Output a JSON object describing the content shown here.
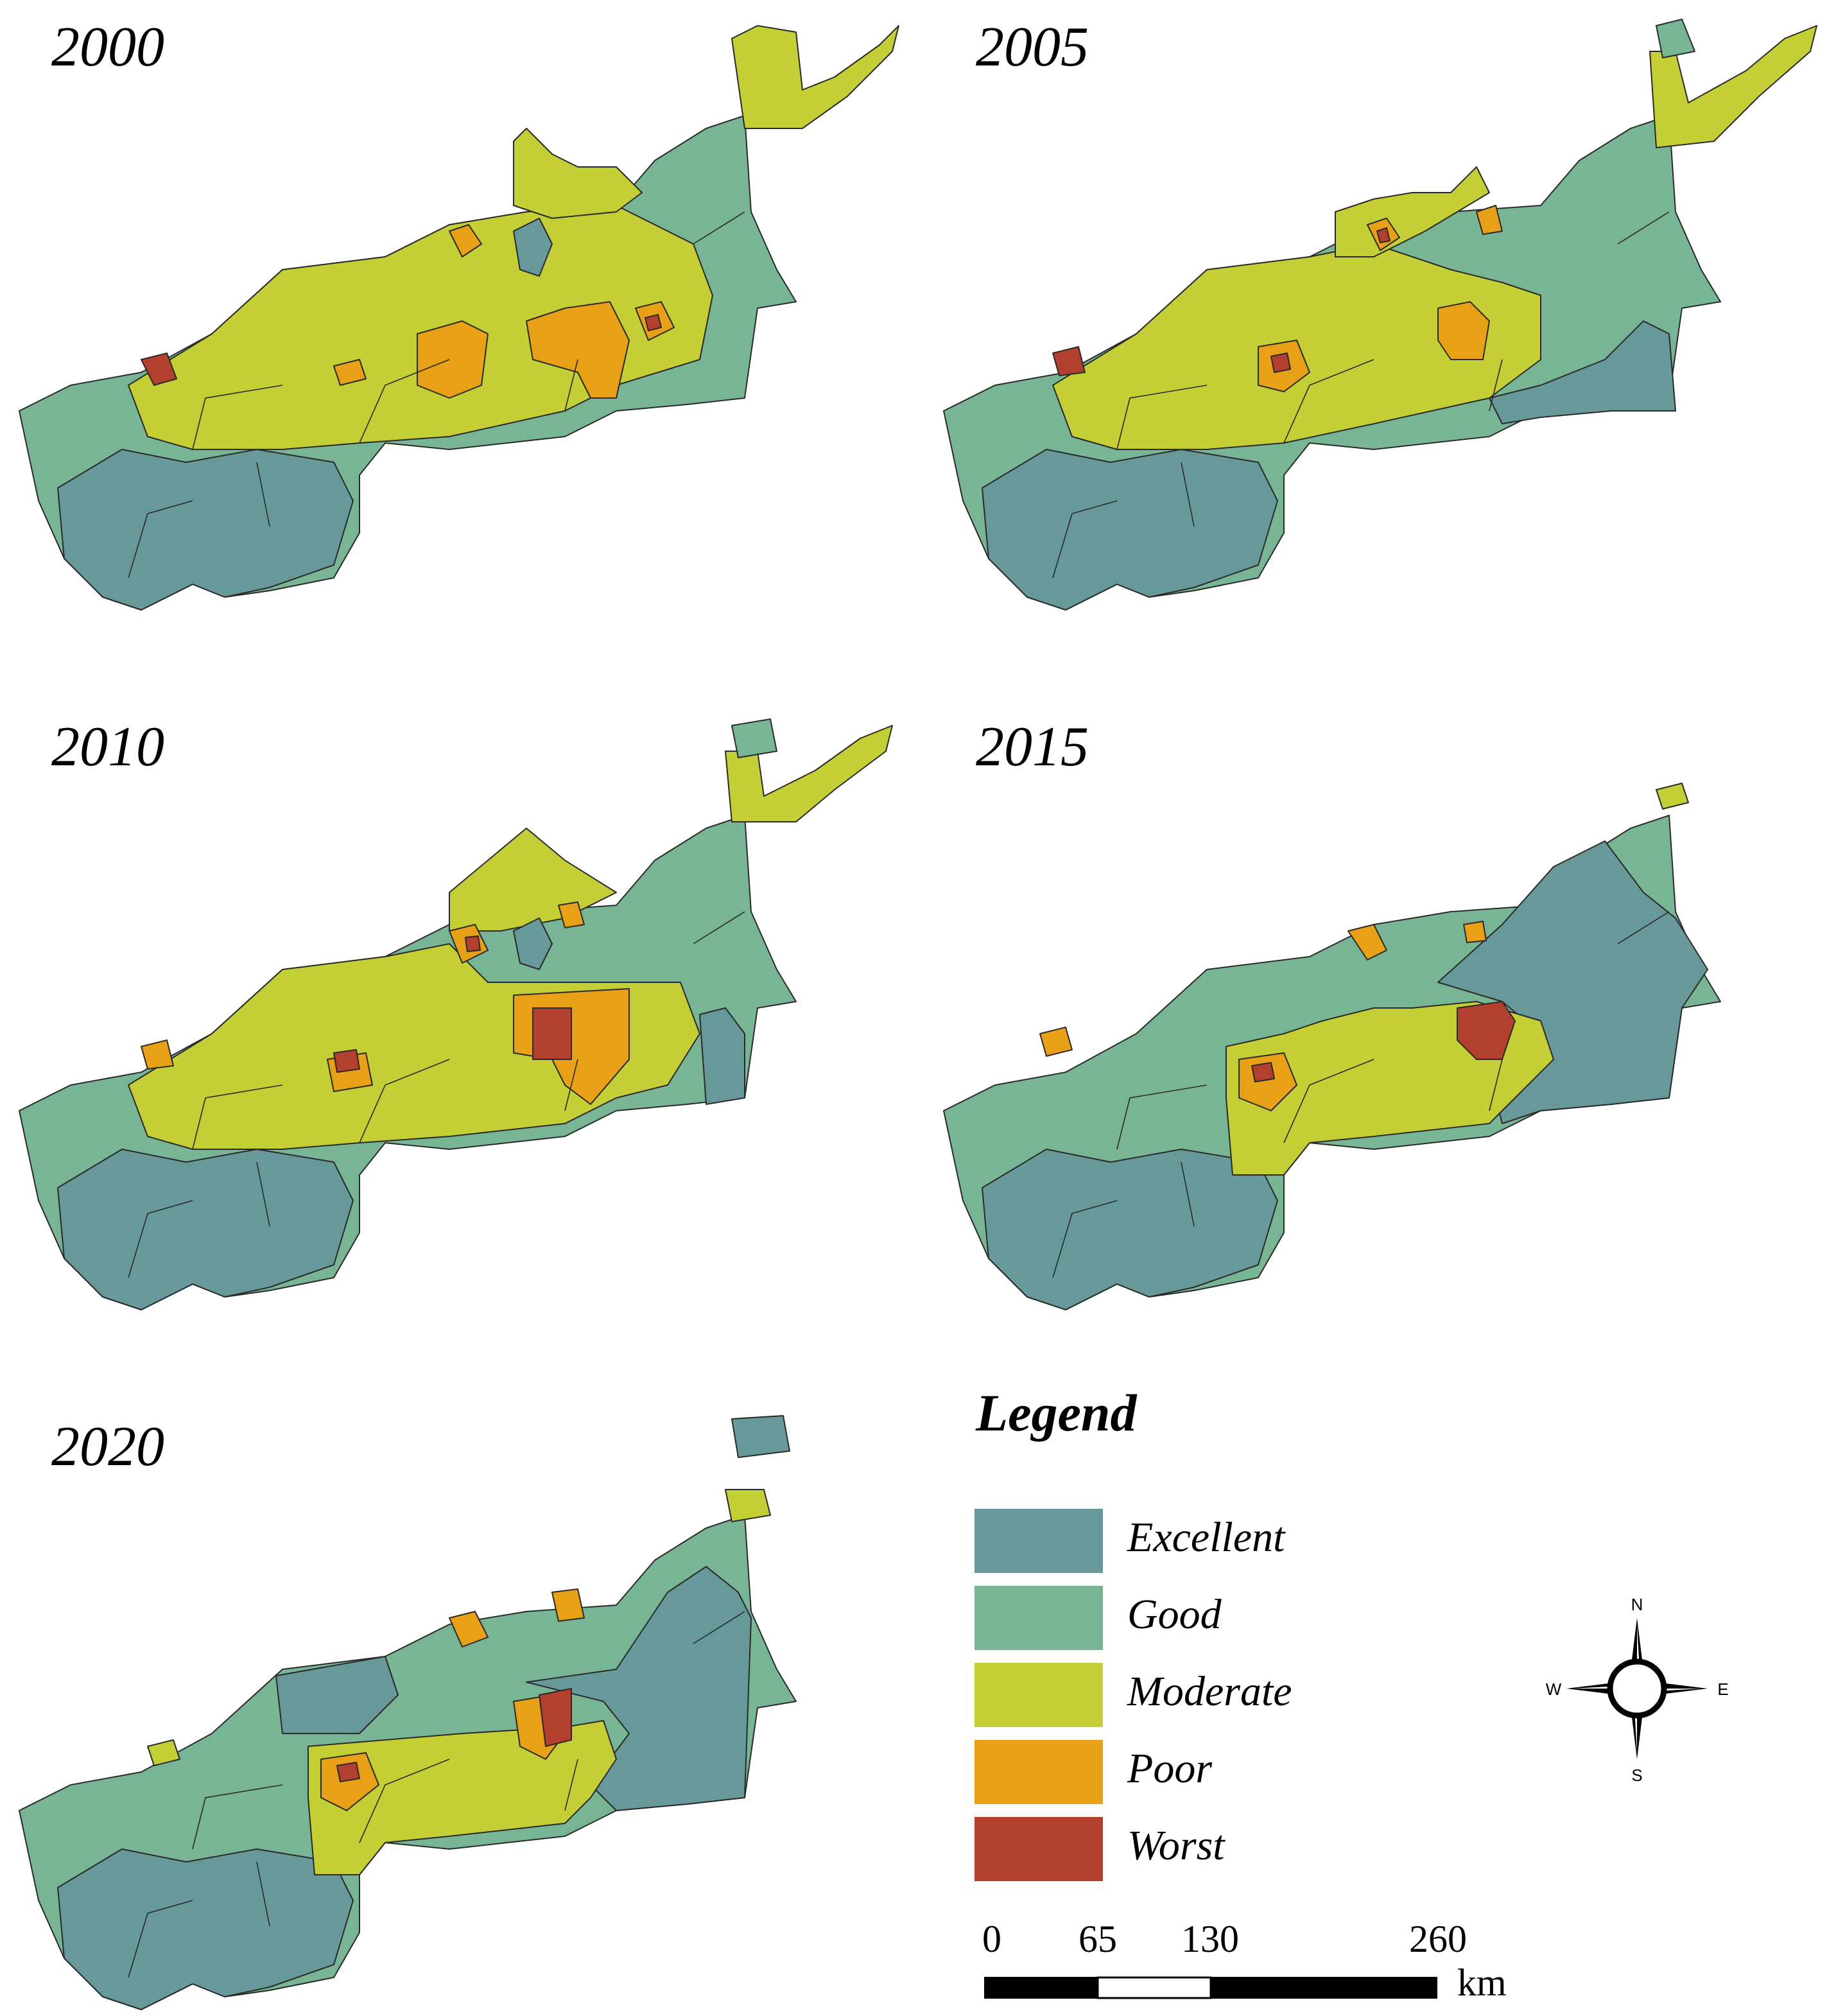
{
  "panels": [
    {
      "year": "2000"
    },
    {
      "year": "2005"
    },
    {
      "year": "2010"
    },
    {
      "year": "2015"
    },
    {
      "year": "2020"
    }
  ],
  "legend": {
    "title": "Legend",
    "items": [
      {
        "label": "Excellent",
        "color": "#68999a"
      },
      {
        "label": "Good",
        "color": "#78b594"
      },
      {
        "label": "Moderate",
        "color": "#c3cf35"
      },
      {
        "label": "Poor",
        "color": "#e8a017"
      },
      {
        "label": "Worst",
        "color": "#b33f2e"
      }
    ]
  },
  "scale_bar": {
    "ticks": [
      "0",
      "65",
      "130",
      "260"
    ],
    "unit": "km"
  },
  "compass": {
    "n": "N",
    "s": "S",
    "e": "E",
    "w": "W"
  }
}
